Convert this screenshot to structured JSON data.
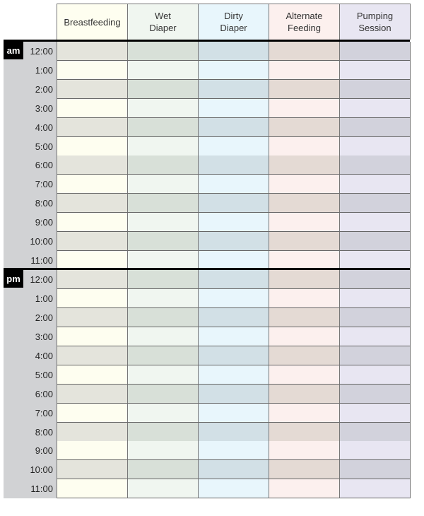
{
  "columns": [
    {
      "label": "Breastfeeding",
      "light": "#fefef0",
      "dark": "#e4e4dc"
    },
    {
      "label": "Wet\nDiaper",
      "light": "#f0f6f0",
      "dark": "#d8e0d8"
    },
    {
      "label": "Dirty\nDiaper",
      "light": "#e8f6fc",
      "dark": "#d2e0e6"
    },
    {
      "label": "Alternate\nFeeding",
      "light": "#fcf0ee",
      "dark": "#e4dad4"
    },
    {
      "label": "Pumping\nSession",
      "light": "#e8e6f2",
      "dark": "#d2d2dc"
    }
  ],
  "periods": [
    {
      "label": "am",
      "times": [
        "12:00",
        "1:00",
        "2:00",
        "3:00",
        "4:00",
        "5:00",
        "6:00",
        "7:00",
        "8:00",
        "9:00",
        "10:00",
        "11:00"
      ]
    },
    {
      "label": "pm",
      "times": [
        "12:00",
        "1:00",
        "2:00",
        "3:00",
        "4:00",
        "5:00",
        "6:00",
        "7:00",
        "8:00",
        "9:00",
        "10:00",
        "11:00"
      ]
    }
  ]
}
